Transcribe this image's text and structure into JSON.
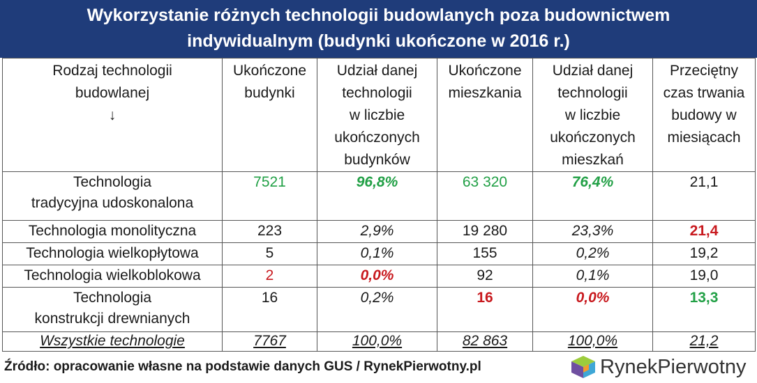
{
  "header": {
    "title_line1": "Wykorzystanie różnych technologii budowlanych poza budownictwem",
    "title_line2": "indywidualnym (budynki ukończone w 2016 r.)"
  },
  "table": {
    "columns": [
      {
        "line1": "Rodzaj technologii",
        "line2": "budowlanej",
        "line3": "↓"
      },
      {
        "line1": "Ukończone",
        "line2": "budynki"
      },
      {
        "line1": "Udział danej",
        "line2": "technologii",
        "line3": "w liczbie",
        "line4": "ukończonych",
        "line5": "budynków"
      },
      {
        "line1": "Ukończone",
        "line2": "mieszkania"
      },
      {
        "line1": "Udział danej",
        "line2": "technologii",
        "line3": "w liczbie",
        "line4": "ukończonych",
        "line5": "mieszkań"
      },
      {
        "line1": "Przeciętny",
        "line2": "czas trwania",
        "line3": "budowy w",
        "line4": "miesiącach"
      }
    ],
    "rows": [
      {
        "name1": "Technologia",
        "name2": "tradycyjna udoskonalona",
        "buildings": "7521",
        "share_buildings": "96,8%",
        "flats": "63 320",
        "share_flats": "76,4%",
        "months": "21,1"
      },
      {
        "name1": "Technologia monolityczna",
        "buildings": "223",
        "share_buildings": "2,9%",
        "flats": "19 280",
        "share_flats": "23,3%",
        "months": "21,4"
      },
      {
        "name1": "Technologia wielkopłytowa",
        "buildings": "5",
        "share_buildings": "0,1%",
        "flats": "155",
        "share_flats": "0,2%",
        "months": "19,2"
      },
      {
        "name1": "Technologia wielkoblokowa",
        "buildings": "2",
        "share_buildings": "0,0%",
        "flats": "92",
        "share_flats": "0,1%",
        "months": "19,0"
      },
      {
        "name1": "Technologia",
        "name2": "konstrukcji drewnianych",
        "buildings": "16",
        "share_buildings": "0,2%",
        "flats": "16",
        "share_flats": "0,0%",
        "months": "13,3"
      }
    ],
    "total": {
      "name": "Wszystkie technologie",
      "buildings": "7767",
      "share_buildings": "100,0%",
      "flats": "82 863",
      "share_flats": "100,0%",
      "months": "21,2"
    }
  },
  "footer": {
    "source": "Źródło: opracowanie własne na podstawie danych GUS / RynekPierwotny.pl"
  },
  "logo": {
    "part1": "Rynek",
    "part2": "Pierwotny",
    "icon": "house-cube-icon"
  },
  "colors": {
    "header_bg": "#1f3c7a",
    "green": "#22a046",
    "red": "#c8191e"
  }
}
